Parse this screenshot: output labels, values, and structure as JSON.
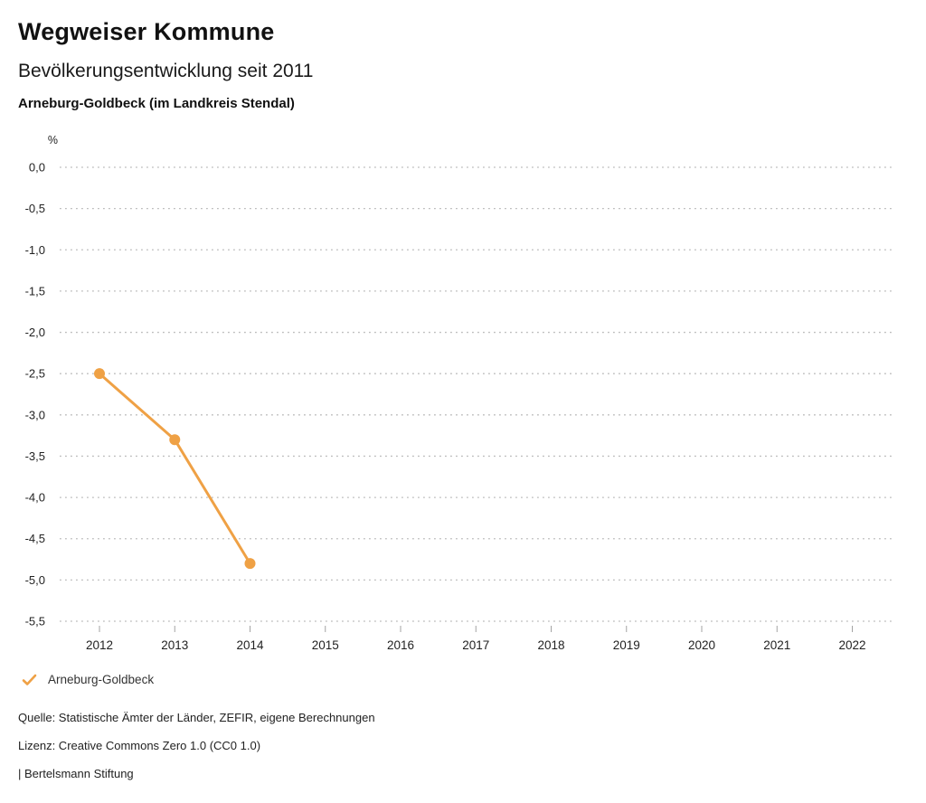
{
  "header": {
    "title": "Wegweiser Kommune",
    "subtitle": "Bevölkerungsentwicklung seit 2011",
    "region": "Arneburg-Goldbeck (im Landkreis Stendal)"
  },
  "chart_data": {
    "type": "line",
    "title": "Bevölkerungsentwicklung seit 2011",
    "subtitle": "Arneburg-Goldbeck (im Landkreis Stendal)",
    "ylabel": "%",
    "xlabel": "",
    "x": [
      2012,
      2013,
      2014
    ],
    "series": [
      {
        "name": "Arneburg-Goldbeck",
        "values": [
          -2.5,
          -3.3,
          -4.8
        ],
        "color": "#efa145"
      }
    ],
    "x_axis_categories": [
      "2012",
      "2013",
      "2014",
      "2015",
      "2016",
      "2017",
      "2018",
      "2019",
      "2020",
      "2021",
      "2022"
    ],
    "ylim": [
      -5.5,
      0.0
    ],
    "y_ticks": [
      0.0,
      -0.5,
      -1.0,
      -1.5,
      -2.0,
      -2.5,
      -3.0,
      -3.5,
      -4.0,
      -4.5,
      -5.0,
      -5.5
    ],
    "y_tick_labels": [
      "0,0",
      "-0,5",
      "-1,0",
      "-1,5",
      "-2,0",
      "-2,5",
      "-3,0",
      "-3,5",
      "-4,0",
      "-4,5",
      "-5,0",
      "-5,5"
    ],
    "grid": "horizontal dotted",
    "legend_position": "bottom-left"
  },
  "legend": {
    "items": [
      {
        "label": "Arneburg-Goldbeck",
        "color": "#efa145",
        "marker": "check"
      }
    ]
  },
  "footer": {
    "source": "Quelle: Statistische Ämter der Länder, ZEFIR, eigene Berechnungen",
    "license": "Lizenz: Creative Commons Zero 1.0 (CC0 1.0)",
    "attribution": "| Bertelsmann Stiftung"
  },
  "colors": {
    "accent": "#efa145",
    "grid": "#bbbbbb",
    "tick": "#a3a3a3",
    "text": "#222222"
  }
}
